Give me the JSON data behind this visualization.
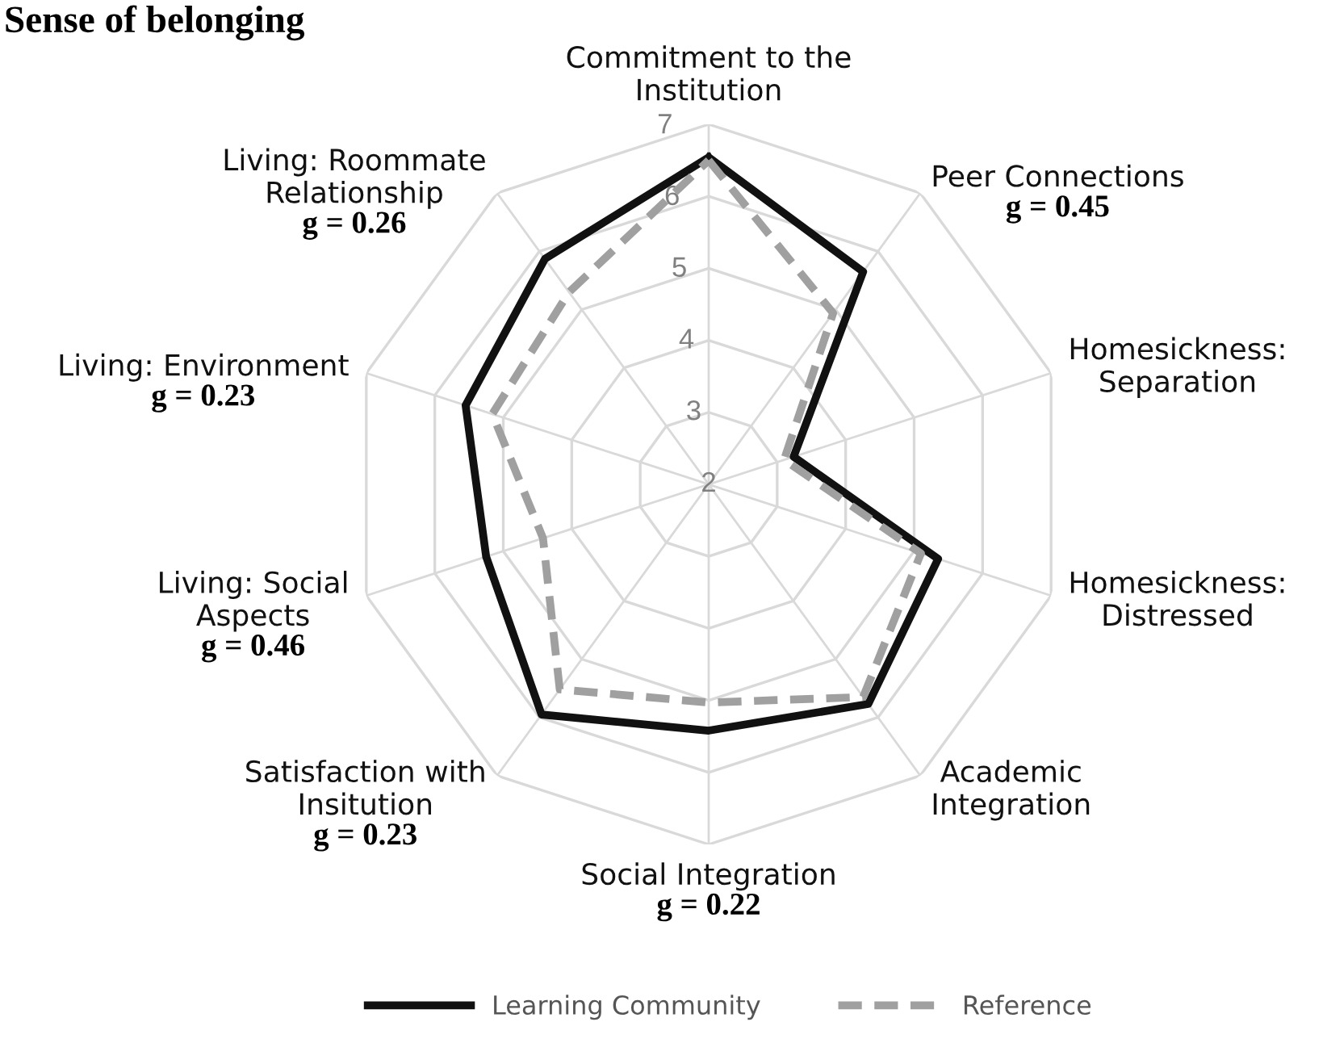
{
  "chart_data": {
    "type": "radar",
    "title": "Sense of belonging",
    "categories": [
      "Commitment to the\nInstitution",
      "Peer Connections",
      "Homesickness:\nSeparation",
      "Homesickness:\nDistressed",
      "Academic\nIntegration",
      "Social Integration",
      "Satisfaction with\nInsitution",
      "Living: Social\nAspects",
      "Living: Environment",
      "Living: Roommate\nRelationship"
    ],
    "series": [
      {
        "name": "Learning Community",
        "color": "#111111",
        "line_style": "solid",
        "values": [
          6.54,
          5.65,
          3.24,
          5.35,
          5.77,
          5.42,
          5.95,
          5.25,
          5.55,
          5.87
        ]
      },
      {
        "name": "Reference",
        "color": "#a0a0a0",
        "line_style": "dashed",
        "values": [
          6.5,
          4.94,
          3.1,
          5.1,
          5.65,
          5.03,
          5.52,
          4.42,
          5.16,
          5.3
        ]
      }
    ],
    "ylim": [
      2,
      7
    ],
    "yticks": [
      2,
      3,
      4,
      5,
      6,
      7
    ],
    "grid": true,
    "legend": "bottom",
    "marker": "none",
    "annotations": [
      {
        "text": "g = 0.45",
        "x": "Peer Connections"
      },
      {
        "text": "g = 0.22",
        "x": "Social Integration"
      },
      {
        "text": "g = 0.23",
        "x": "Satisfaction with\nInsitution"
      },
      {
        "text": "g = 0.46",
        "x": "Living: Social\nAspects"
      },
      {
        "text": "g = 0.23",
        "x": "Living: Environment"
      },
      {
        "text": "g = 0.26",
        "x": "Living: Roommate\nRelationship"
      }
    ]
  }
}
